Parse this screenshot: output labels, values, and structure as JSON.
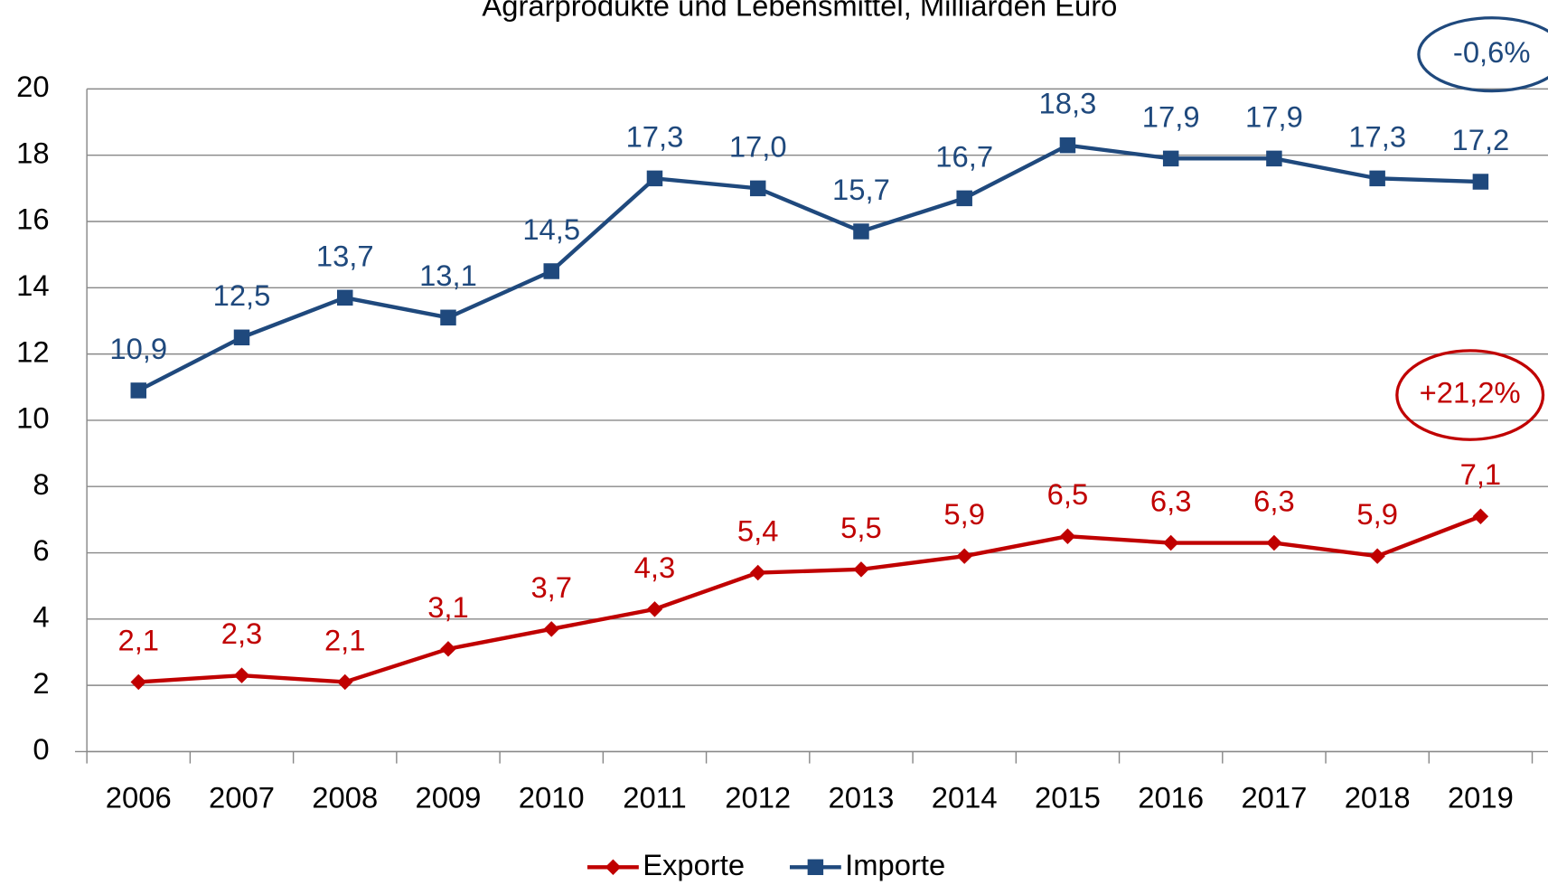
{
  "chart_data": {
    "type": "line",
    "title": "Agrarprodukte und Lebensmittel, Milliarden Euro",
    "categories": [
      "2006",
      "2007",
      "2008",
      "2009",
      "2010",
      "2011",
      "2012",
      "2013",
      "2014",
      "2015",
      "2016",
      "2017",
      "2018",
      "2019"
    ],
    "series": [
      {
        "name": "Exporte",
        "color": "#c00000",
        "marker": "diamond",
        "values": [
          2.1,
          2.3,
          2.1,
          3.1,
          3.7,
          4.3,
          5.4,
          5.5,
          5.9,
          6.5,
          6.3,
          6.3,
          5.9,
          7.1
        ],
        "value_labels": [
          "2,1",
          "2,3",
          "2,1",
          "3,1",
          "3,7",
          "4,3",
          "5,4",
          "5,5",
          "5,9",
          "6,5",
          "6,3",
          "6,3",
          "5,9",
          "7,1"
        ]
      },
      {
        "name": "Importe",
        "color": "#1f497d",
        "marker": "square",
        "values": [
          10.9,
          12.5,
          13.7,
          13.1,
          14.5,
          17.3,
          17.0,
          15.7,
          16.7,
          18.3,
          17.9,
          17.9,
          17.3,
          17.2
        ],
        "value_labels": [
          "10,9",
          "12,5",
          "13,7",
          "13,1",
          "14,5",
          "17,3",
          "17,0",
          "15,7",
          "16,7",
          "18,3",
          "17,9",
          "17,9",
          "17,3",
          "17,2"
        ]
      }
    ],
    "annotations": [
      {
        "text": "-0,6%",
        "color": "#1f497d"
      },
      {
        "text": "+21,2%",
        "color": "#c00000"
      }
    ],
    "ylim": [
      0,
      20
    ],
    "yticks": [
      0,
      2,
      4,
      6,
      8,
      10,
      12,
      14,
      16,
      18,
      20
    ],
    "grid": true,
    "legend": "bottom"
  }
}
